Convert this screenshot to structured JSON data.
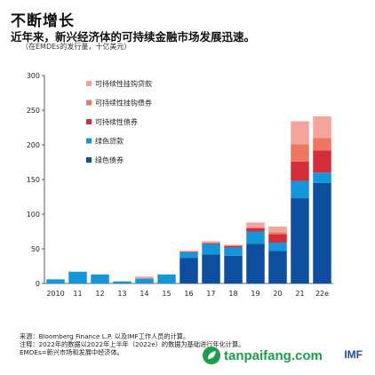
{
  "title": "不断增长",
  "subtitle": "近年来，新兴经济体的可持续金融市场发展迅速。",
  "unit_note": "（在EMDEs的发行量，十亿美元）",
  "chart_data": {
    "type": "bar",
    "stacked": true,
    "categories": [
      "2010",
      "11",
      "12",
      "13",
      "14",
      "15",
      "16",
      "17",
      "18",
      "19",
      "20",
      "21",
      "22e"
    ],
    "ylim": [
      0,
      300
    ],
    "yticks": [
      0,
      50,
      100,
      150,
      200,
      250,
      300
    ],
    "grid": false,
    "legend_position": "upper-left",
    "series": [
      {
        "name": "绿色债券",
        "color": "#0d4f9e",
        "values": [
          0,
          0,
          0,
          0,
          0,
          0,
          37,
          42,
          40,
          57,
          47,
          123,
          145
        ]
      },
      {
        "name": "绿色贷款",
        "color": "#1496dc",
        "values": [
          6,
          17,
          13,
          3,
          7,
          13,
          8,
          15,
          12,
          18,
          12,
          25,
          15
        ]
      },
      {
        "name": "可持续性债券",
        "color": "#d42d3a",
        "values": [
          0,
          0,
          0,
          0,
          0,
          0,
          1,
          1,
          2,
          5,
          12,
          28,
          32
        ]
      },
      {
        "name": "可持续性挂钩债券",
        "color": "#ee7560",
        "values": [
          0,
          0,
          0,
          0,
          0,
          0,
          0,
          1,
          1,
          0,
          3,
          25,
          18
        ]
      },
      {
        "name": "可持续性挂钩贷款",
        "color": "#f4a49a",
        "values": [
          0,
          0,
          0,
          0,
          3,
          0,
          1,
          2,
          1,
          8,
          8,
          33,
          31
        ]
      }
    ]
  },
  "notes": [
    "来源：Bloomberg Finance L.P. 以及IMF工作人员的计算。",
    "注释：2022年的数据以2022年上半年（2022e）的数据为基础进行年化计算。",
    "EMDEs=新兴市场和发展中经济体。"
  ],
  "watermark": {
    "text": "tanpaifang.com",
    "logo_color": "#1d9e4a"
  },
  "imf_logo": "IMF"
}
